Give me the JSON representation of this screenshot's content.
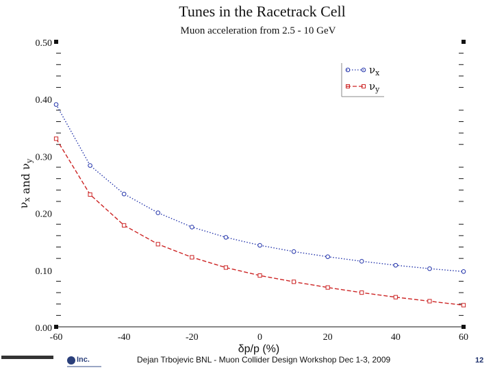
{
  "chart_data": {
    "type": "line",
    "title": "Tunes in the Racetrack Cell",
    "subtitle": "Muon acceleration from 2.5 - 10 GeV",
    "xlabel": "δp/p (%)",
    "ylabel": "νx and νy",
    "xlim": [
      -60,
      60
    ],
    "ylim": [
      0,
      0.5
    ],
    "xticks": [
      "-60",
      "-40",
      "-20",
      "0",
      "20",
      "40",
      "60"
    ],
    "yticks": [
      "0.00",
      "0.10",
      "0.20",
      "0.30",
      "0.40",
      "0.50"
    ],
    "x": [
      -60,
      -50,
      -40,
      -30,
      -20,
      -10,
      0,
      10,
      20,
      30,
      40,
      50,
      60
    ],
    "series": [
      {
        "name": "νx",
        "color": "#2233aa",
        "marker": "circle",
        "line": "dotted",
        "values": [
          0.39,
          0.283,
          0.233,
          0.2,
          0.175,
          0.157,
          0.143,
          0.132,
          0.123,
          0.115,
          0.108,
          0.102,
          0.097
        ]
      },
      {
        "name": "νy",
        "color": "#cc2222",
        "marker": "square",
        "line": "dashed",
        "values": [
          0.33,
          0.232,
          0.178,
          0.145,
          0.122,
          0.104,
          0.09,
          0.079,
          0.069,
          0.06,
          0.052,
          0.045,
          0.038
        ]
      }
    ],
    "legend": "top-right",
    "grid": false
  },
  "footer": {
    "text": "Dejan Trbojevic  BNL - Muon Collider Design Workshop Dec 1-3, 2009",
    "page": "12"
  },
  "logos": {
    "muons": "Inc."
  }
}
